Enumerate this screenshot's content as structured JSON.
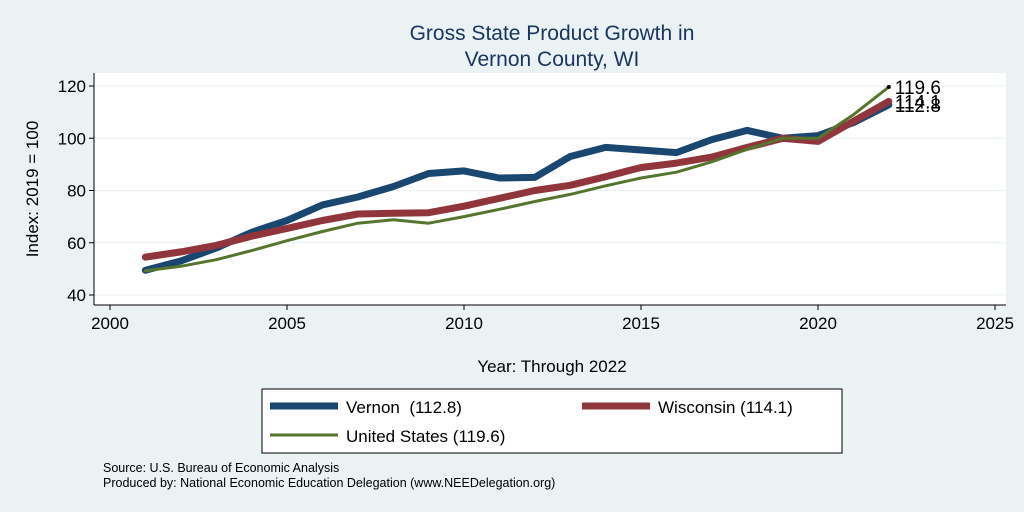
{
  "chart_data": {
    "type": "line",
    "title": [
      "Gross State Product Growth in",
      "Vernon County, WI"
    ],
    "xlabel": "Year: Through 2022",
    "ylabel": "Index: 2019 = 100",
    "xlim": [
      2000,
      2025
    ],
    "ylim": [
      40,
      120
    ],
    "xticks": [
      2000,
      2005,
      2010,
      2015,
      2020,
      2025
    ],
    "yticks": [
      40,
      60,
      80,
      100,
      120
    ],
    "grid": "horizontal",
    "x": [
      2001,
      2002,
      2003,
      2004,
      2005,
      2006,
      2007,
      2008,
      2009,
      2010,
      2011,
      2012,
      2013,
      2014,
      2015,
      2016,
      2017,
      2018,
      2019,
      2020,
      2021,
      2022
    ],
    "series": [
      {
        "name": "Vernon",
        "legend": "Vernon  (112.8)",
        "end_label": "112.8",
        "color": "#1a476f",
        "values": [
          49.5,
          53,
          58,
          64,
          68.5,
          74.5,
          77.5,
          81.5,
          86.5,
          87.5,
          84.8,
          85,
          93,
          96.5,
          95.5,
          94.5,
          99.5,
          103,
          100,
          101,
          106,
          112.8
        ]
      },
      {
        "name": "Wisconsin",
        "legend": "Wisconsin (114.1)",
        "end_label": "114.1",
        "color": "#90353b",
        "values": [
          54.5,
          56.5,
          59,
          62.5,
          65.5,
          68.5,
          71,
          71.3,
          71.5,
          74,
          77,
          80,
          82,
          85.3,
          88.8,
          90.5,
          92.8,
          96.5,
          100,
          98.8,
          106.5,
          114.1
        ]
      },
      {
        "name": "United States",
        "legend": "United States (119.6)",
        "end_label": "119.6",
        "color": "#55752f",
        "values": [
          49.3,
          51,
          53.5,
          57,
          60.8,
          64.3,
          67.5,
          68.8,
          67.5,
          70,
          72.8,
          75.8,
          78.5,
          81.8,
          84.8,
          87,
          91,
          95.8,
          100,
          100,
          109,
          119.6
        ]
      }
    ]
  },
  "footer": {
    "source": "Source: U.S. Bureau of Economic Analysis",
    "produced": "Produced by: National Economic Education Delegation (www.NEEDelegation.org)"
  }
}
